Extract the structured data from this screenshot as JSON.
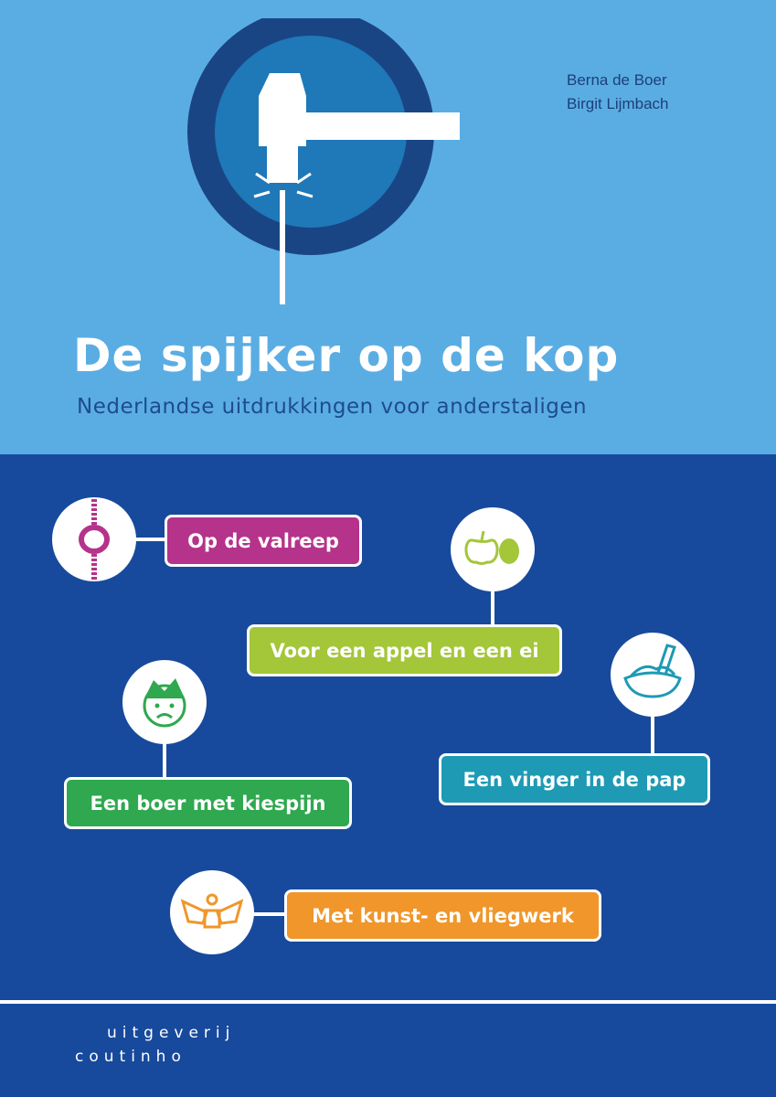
{
  "authors": [
    "Berna de Boer",
    "Birgit Lijmbach"
  ],
  "title": "De spijker op de kop",
  "subtitle": "Nederlandse uitdrukkingen voor anderstaligen",
  "expressions": [
    {
      "label": "Op de valreep",
      "color": "#b5338a",
      "icon": "rope-knot-icon"
    },
    {
      "label": "Voor een appel en een ei",
      "color": "#a4c639",
      "icon": "apple-egg-icon"
    },
    {
      "label": "Een boer met kiespijn",
      "color": "#2fa84f",
      "icon": "sad-face-icon"
    },
    {
      "label": "Een vinger in de pap",
      "color": "#1e9ab5",
      "icon": "finger-bowl-icon"
    },
    {
      "label": "Met kunst- en vliegwerk",
      "color": "#f0962a",
      "icon": "flying-machine-icon"
    }
  ],
  "publisher": {
    "line1": "uitgeverij",
    "line2": "coutinho"
  },
  "colors": {
    "top": "#5aade3",
    "bottom": "#174a9c"
  }
}
